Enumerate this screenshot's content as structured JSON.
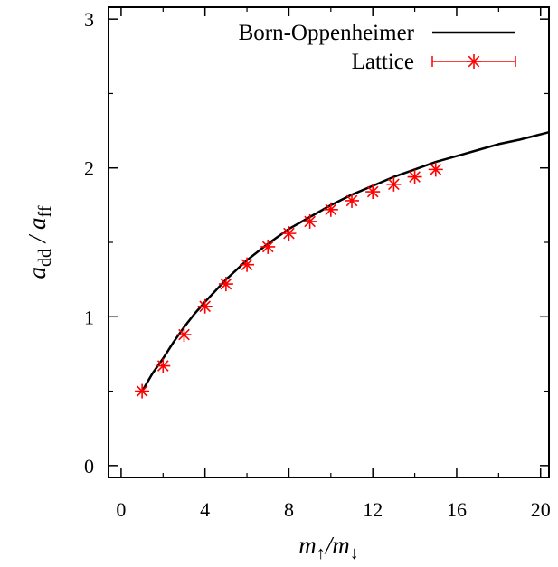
{
  "chart_data": {
    "type": "line",
    "title": "",
    "xlabel": {
      "main": "m",
      "sub1": "↑",
      "sep": "/m",
      "sub2": "↓"
    },
    "ylabel": {
      "a1": "a",
      "sub1": "dd",
      "sep": " / a",
      "sub2": "ff"
    },
    "xlim": [
      -0.6,
      20.4
    ],
    "ylim": [
      -0.08,
      3.08
    ],
    "x_ticks": [
      0,
      4,
      8,
      12,
      16,
      20
    ],
    "y_ticks": [
      0,
      1,
      2,
      3
    ],
    "x_tick_labels": [
      "0",
      "4",
      "8",
      "12",
      "16",
      "20"
    ],
    "y_tick_labels": [
      "0",
      "1",
      "2",
      "3"
    ],
    "grid": false,
    "legend_position": "top-right",
    "series": [
      {
        "name": "Born-Oppenheimer",
        "style": "line",
        "color": "#000000",
        "x": [
          1,
          1.5,
          2,
          2.5,
          3,
          3.5,
          4,
          5,
          6,
          7,
          8,
          9,
          10,
          11,
          12,
          13,
          14,
          15,
          16,
          17,
          18,
          19,
          20.4
        ],
        "y": [
          0.5,
          0.62,
          0.72,
          0.83,
          0.93,
          1.02,
          1.1,
          1.25,
          1.38,
          1.49,
          1.59,
          1.67,
          1.75,
          1.82,
          1.88,
          1.94,
          1.99,
          2.04,
          2.08,
          2.12,
          2.16,
          2.19,
          2.24
        ]
      },
      {
        "name": "Lattice",
        "style": "points",
        "marker": "star",
        "color": "#ff0000",
        "x": [
          1,
          2,
          3,
          4,
          5,
          6,
          7,
          8,
          9,
          10,
          11,
          12,
          13,
          14,
          15
        ],
        "y": [
          0.5,
          0.67,
          0.88,
          1.07,
          1.22,
          1.35,
          1.47,
          1.56,
          1.64,
          1.72,
          1.78,
          1.84,
          1.89,
          1.94,
          1.99
        ]
      }
    ]
  }
}
